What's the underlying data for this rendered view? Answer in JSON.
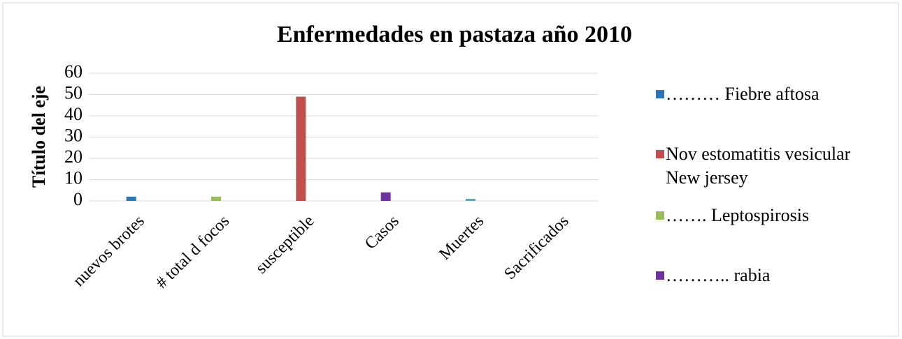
{
  "chart_data": {
    "type": "bar",
    "title": "Enfermedades en pastaza año 2010",
    "y_label": "Título del eje",
    "categories": [
      "nuevos brotes",
      "# total  d focos",
      "susceptible",
      "Casos",
      "Muertes",
      "Sacrificados"
    ],
    "series": [
      {
        "name": "……… Fiebre  aftosa",
        "color": "#2e75b6",
        "values": [
          2,
          0,
          0,
          0,
          0,
          0
        ]
      },
      {
        "name": "Nov estomatitis vesicular New jersey",
        "color": "#c0504d",
        "values": [
          0,
          0,
          49,
          0,
          0,
          0
        ]
      },
      {
        "name": "……. Leptospirosis",
        "color": "#9bbb59",
        "values": [
          0,
          2,
          0,
          0,
          0,
          0
        ]
      },
      {
        "name": "……….. rabia",
        "color": "#7030a0",
        "values": [
          0,
          0,
          0,
          4,
          0,
          0
        ]
      },
      {
        "color": "#4bacc6",
        "values": [
          0,
          0,
          0,
          0,
          1,
          0
        ]
      }
    ],
    "ylim": [
      0,
      60
    ],
    "yticks": [
      0,
      10,
      20,
      30,
      40,
      50,
      60
    ],
    "grid": true,
    "legend": "right"
  }
}
